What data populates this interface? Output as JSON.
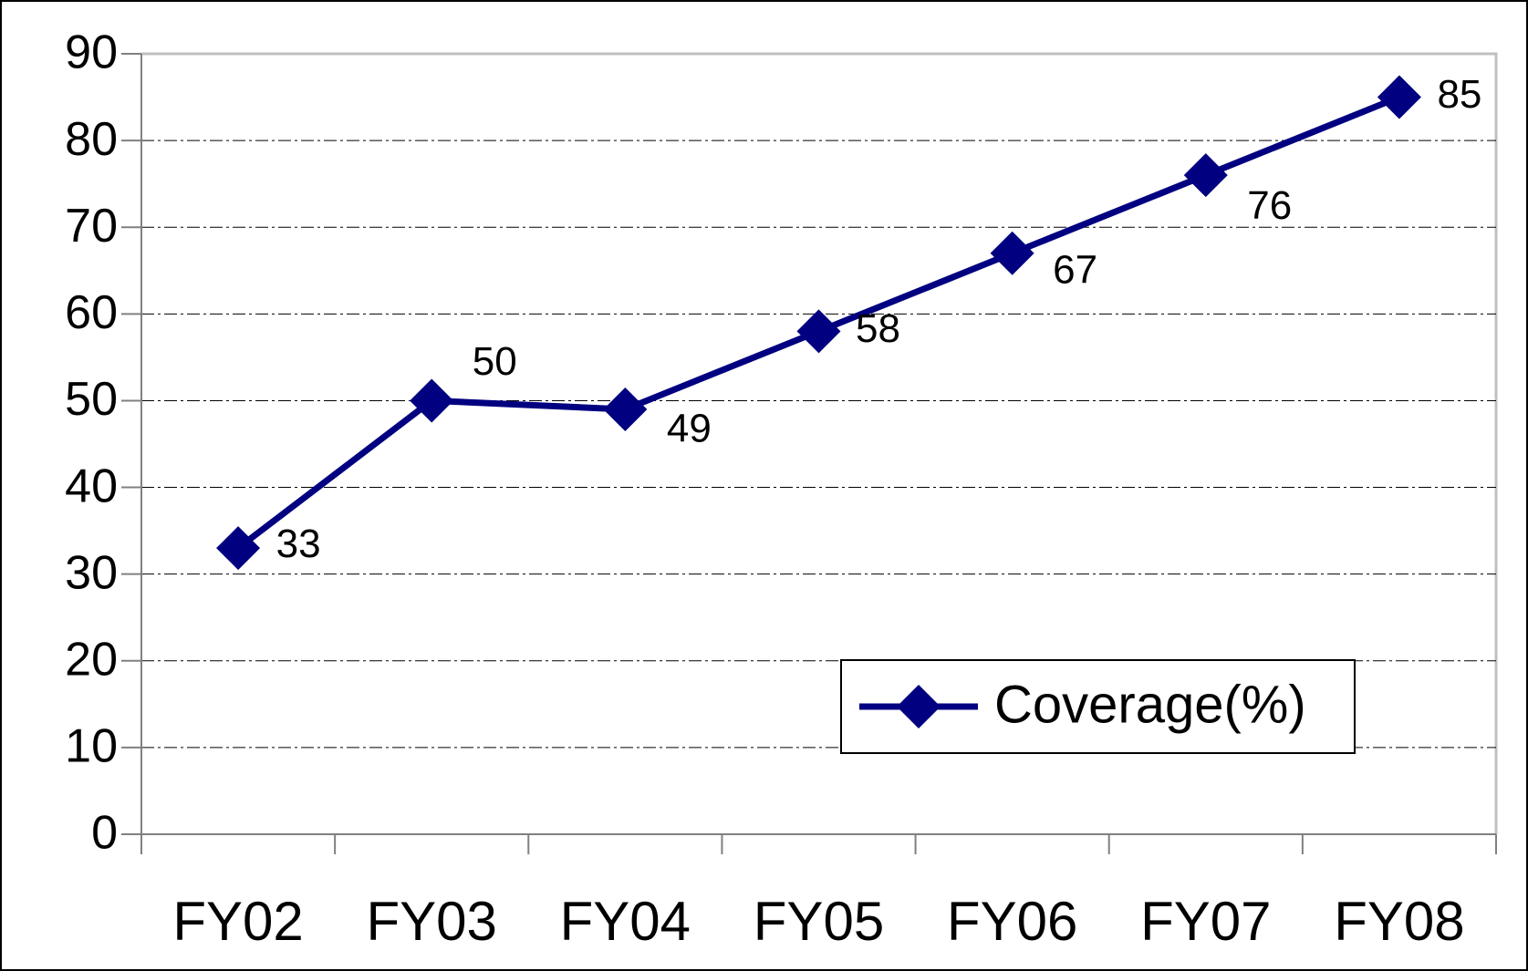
{
  "chart_data": {
    "type": "line",
    "categories": [
      "FY02",
      "FY03",
      "FY04",
      "FY05",
      "FY06",
      "FY07",
      "FY08"
    ],
    "series": [
      {
        "name": "Coverage(%)",
        "color": "#000080",
        "values": [
          33,
          50,
          49,
          58,
          67,
          76,
          85
        ]
      }
    ],
    "ylim": [
      0,
      90
    ],
    "yticks": [
      0,
      10,
      20,
      30,
      40,
      50,
      60,
      70,
      80,
      90
    ],
    "grid": true,
    "legend": "lower right"
  }
}
